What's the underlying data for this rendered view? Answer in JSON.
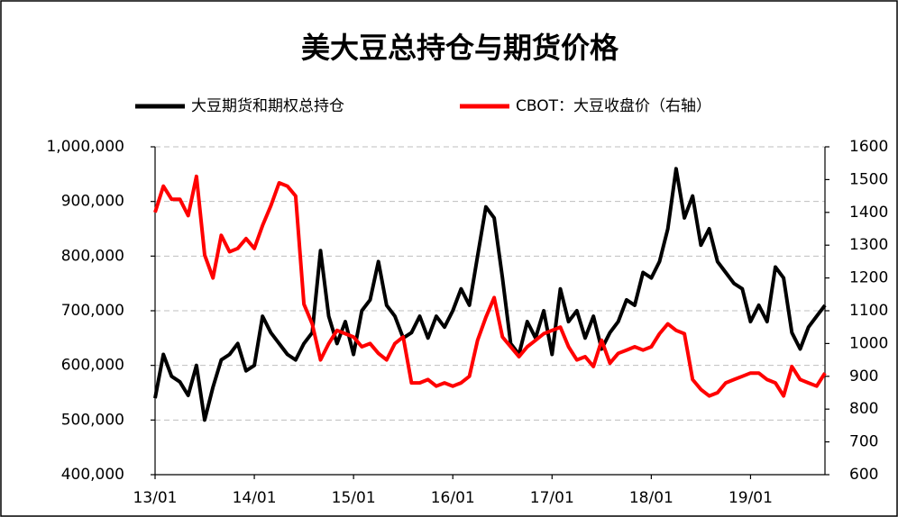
{
  "chart_data": {
    "type": "line",
    "title": "美大豆总持仓与期货价格",
    "categories": [
      "13/01",
      null,
      null,
      null,
      null,
      null,
      null,
      null,
      null,
      null,
      null,
      null,
      "14/01",
      null,
      null,
      null,
      null,
      null,
      null,
      null,
      null,
      null,
      null,
      null,
      "15/01",
      null,
      null,
      null,
      null,
      null,
      null,
      null,
      null,
      null,
      null,
      null,
      "16/01",
      null,
      null,
      null,
      null,
      null,
      null,
      null,
      null,
      null,
      null,
      null,
      "17/01",
      null,
      null,
      null,
      null,
      null,
      null,
      null,
      null,
      null,
      null,
      null,
      "18/01",
      null,
      null,
      null,
      null,
      null,
      null,
      null,
      null,
      null,
      null,
      null,
      "19/01",
      null,
      null,
      null,
      null,
      null,
      null,
      null,
      null,
      null
    ],
    "series": [
      {
        "name": "大豆期货和期权总持仓",
        "color": "#000000",
        "axis": "y",
        "values": [
          540000,
          620000,
          580000,
          570000,
          545000,
          600000,
          500000,
          560000,
          610000,
          620000,
          640000,
          590000,
          600000,
          690000,
          660000,
          640000,
          620000,
          610000,
          640000,
          660000,
          810000,
          690000,
          640000,
          680000,
          620000,
          700000,
          720000,
          790000,
          710000,
          690000,
          650000,
          660000,
          690000,
          650000,
          690000,
          670000,
          700000,
          740000,
          710000,
          800000,
          890000,
          870000,
          760000,
          640000,
          620000,
          680000,
          650000,
          700000,
          620000,
          740000,
          680000,
          700000,
          650000,
          690000,
          630000,
          660000,
          680000,
          720000,
          710000,
          770000,
          760000,
          790000,
          850000,
          960000,
          870000,
          910000,
          820000,
          850000,
          790000,
          770000,
          750000,
          740000,
          680000,
          710000,
          680000,
          780000,
          760000,
          660000,
          630000,
          670000,
          690000,
          710000
        ]
      },
      {
        "name": "CBOT：大豆收盘价（右轴）",
        "color": "#ff0000",
        "axis": "y2",
        "values": [
          1400,
          1480,
          1440,
          1440,
          1390,
          1510,
          1270,
          1200,
          1330,
          1280,
          1290,
          1320,
          1290,
          1360,
          1420,
          1490,
          1480,
          1450,
          1120,
          1060,
          950,
          1000,
          1040,
          1030,
          1020,
          990,
          1000,
          970,
          950,
          1000,
          1020,
          880,
          880,
          890,
          870,
          880,
          870,
          880,
          900,
          1010,
          1080,
          1140,
          1020,
          990,
          960,
          990,
          1010,
          1030,
          1040,
          1050,
          990,
          950,
          960,
          930,
          1010,
          940,
          970,
          980,
          990,
          980,
          990,
          1030,
          1060,
          1040,
          1030,
          890,
          860,
          840,
          850,
          880,
          890,
          900,
          910,
          910,
          890,
          880,
          840,
          930,
          890,
          880,
          870,
          910
        ]
      }
    ],
    "ylim": [
      400000,
      1000000
    ],
    "yticks": [
      {
        "value": 400000,
        "label": "400,000"
      },
      {
        "value": 500000,
        "label": "500,000"
      },
      {
        "value": 600000,
        "label": "600,000"
      },
      {
        "value": 700000,
        "label": "700,000"
      },
      {
        "value": 800000,
        "label": "800,000"
      },
      {
        "value": 900000,
        "label": "900,000"
      },
      {
        "value": 1000000,
        "label": "1,000,000"
      }
    ],
    "y2lim": [
      600,
      1600
    ],
    "y2ticks": [
      600,
      700,
      800,
      900,
      1000,
      1100,
      1200,
      1300,
      1400,
      1500,
      1600
    ],
    "grid": true
  }
}
